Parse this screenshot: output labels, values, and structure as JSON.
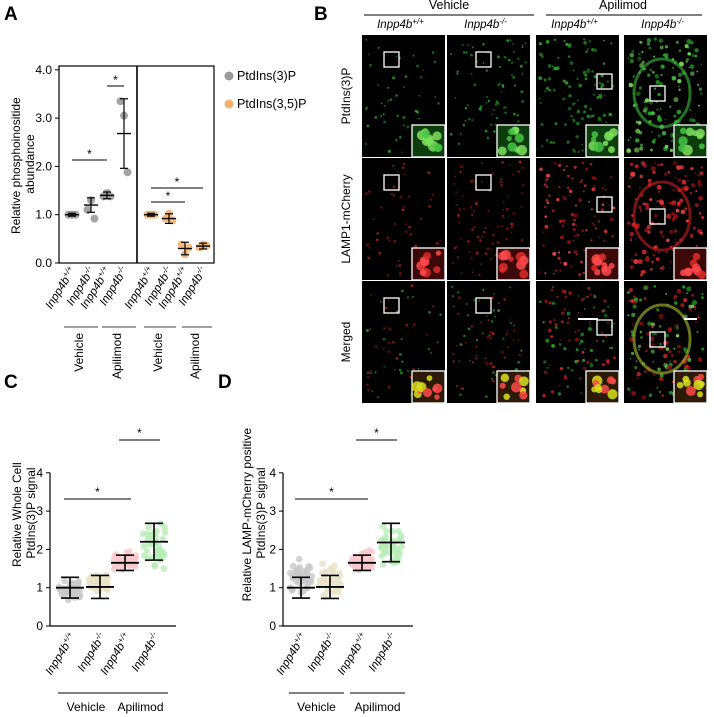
{
  "panels": {
    "A": {
      "label": "A",
      "ylabel": "Relative phosphoinositide abundance",
      "ylim": [
        0,
        4
      ],
      "yticks": [
        "0.0",
        "1.0",
        "2.0",
        "3.0",
        "4.0"
      ],
      "categories": [
        "Inpp4b+/+",
        "Inpp4b-/-",
        "Inpp4b+/+",
        "Inpp4b-/-"
      ],
      "groups": [
        "Vehicle",
        "Apilimod"
      ],
      "legend": [
        "PtdIns(3)P",
        "PtdIns(3,5)P"
      ],
      "star": "*"
    },
    "B": {
      "label": "B",
      "group_headers": [
        "Vehicle",
        "Apilimod"
      ],
      "column_headers": [
        "Inpp4b+/+",
        "Inpp4b-/-",
        "Inpp4b+/+",
        "Inpp4b-/-"
      ],
      "row_labels": [
        "PtdIns(3)P",
        "LAMP1-mCherry",
        "Merged"
      ]
    },
    "C": {
      "label": "C",
      "ylabel_lines": [
        "Relative Whole Cell",
        "PtdIns(3)P signal"
      ],
      "ylim": [
        0,
        4
      ],
      "yticks": [
        "0",
        "1",
        "2",
        "3",
        "4"
      ],
      "categories": [
        "Inpp4b+/+",
        "Inpp4b-/-",
        "Inpp4b+/+",
        "Inpp4b-/-"
      ],
      "groups": [
        "Vehicle",
        "Apilimod"
      ],
      "star": "*"
    },
    "D": {
      "label": "D",
      "ylabel_lines": [
        "Relative LAMP-mCherry positive",
        "PtdIns(3)P signal"
      ],
      "ylim": [
        0,
        4
      ],
      "yticks": [
        "0",
        "1",
        "2",
        "3",
        "4"
      ],
      "categories": [
        "Inpp4b+/+",
        "Inpp4b-/-",
        "Inpp4b+/+",
        "Inpp4b-/-"
      ],
      "groups": [
        "Vehicle",
        "Apilimod"
      ],
      "star": "*"
    }
  },
  "chart_data": [
    {
      "panel": "A",
      "type": "scatter",
      "categories": [
        "Inpp4b+/+",
        "Inpp4b-/-",
        "Inpp4b+/+",
        "Inpp4b-/-"
      ],
      "groups": [
        "Vehicle",
        "Vehicle",
        "Apilimod",
        "Apilimod"
      ],
      "ylim": [
        0,
        4
      ],
      "series": [
        {
          "name": "PtdIns(3)P",
          "color": "#9a9a9a",
          "mean": [
            1.0,
            1.2,
            1.4,
            2.68
          ],
          "sd": [
            0.03,
            0.15,
            0.07,
            0.72
          ],
          "points": [
            [
              1.0,
              1.0,
              1.0
            ],
            [
              1.1,
              1.3,
              0.92
            ],
            [
              1.38,
              1.45,
              1.38
            ],
            [
              3.35,
              3.05,
              1.88
            ]
          ]
        },
        {
          "name": "PtdIns(3,5)P",
          "color": "#f4b272",
          "mean": [
            1.0,
            0.92,
            0.3,
            0.35
          ],
          "sd": [
            0.03,
            0.1,
            0.13,
            0.06
          ],
          "points": [
            [
              1.0,
              1.0,
              1.0
            ],
            [
              0.92,
              1.02,
              0.88
            ],
            [
              0.38,
              0.18,
              0.32
            ],
            [
              0.32,
              0.38,
              0.36
            ]
          ]
        }
      ],
      "significance": [
        {
          "series": "PtdIns(3)P",
          "between": [
            0,
            2
          ]
        },
        {
          "series": "PtdIns(3)P",
          "between": [
            2,
            3
          ]
        },
        {
          "series": "PtdIns(3,5)P",
          "between": [
            0,
            2
          ]
        },
        {
          "series": "PtdIns(3,5)P",
          "between": [
            0,
            3
          ]
        }
      ]
    },
    {
      "panel": "C",
      "type": "scatter",
      "categories": [
        "Inpp4b+/+",
        "Inpp4b-/-",
        "Inpp4b+/+",
        "Inpp4b-/-"
      ],
      "groups": [
        "Vehicle",
        "Vehicle",
        "Apilimod",
        "Apilimod"
      ],
      "ylim": [
        0,
        4
      ],
      "colors": [
        "#c8c8c8",
        "#eae2c8",
        "#f9c8cc",
        "#b7eeb5"
      ],
      "mean": [
        1.0,
        1.02,
        1.65,
        2.2
      ],
      "sd": [
        0.27,
        0.3,
        0.2,
        0.48
      ],
      "range": [
        [
          0.6,
          1.3
        ],
        [
          0.6,
          1.7
        ],
        [
          1.3,
          2.1
        ],
        [
          1.3,
          3.0
        ]
      ],
      "significance": [
        {
          "between": [
            0,
            2
          ]
        },
        {
          "between": [
            2,
            3
          ]
        }
      ]
    },
    {
      "panel": "D",
      "type": "scatter",
      "categories": [
        "Inpp4b+/+",
        "Inpp4b-/-",
        "Inpp4b+/+",
        "Inpp4b-/-"
      ],
      "groups": [
        "Vehicle",
        "Vehicle",
        "Apilimod",
        "Apilimod"
      ],
      "ylim": [
        0,
        4
      ],
      "colors": [
        "#c8c8c8",
        "#eae2c8",
        "#f9c8cc",
        "#b7eeb5"
      ],
      "mean": [
        1.0,
        1.02,
        1.65,
        2.18
      ],
      "sd": [
        0.27,
        0.3,
        0.2,
        0.5
      ],
      "range": [
        [
          0.6,
          1.8
        ],
        [
          0.6,
          1.8
        ],
        [
          1.3,
          2.1
        ],
        [
          1.3,
          3.0
        ]
      ],
      "significance": [
        {
          "between": [
            0,
            2
          ]
        },
        {
          "between": [
            2,
            3
          ]
        }
      ]
    }
  ]
}
